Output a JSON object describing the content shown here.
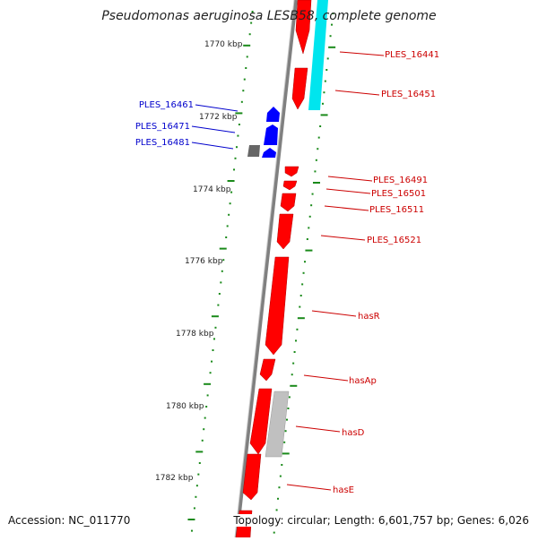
{
  "title": "Pseudomonas aeruginosa LESB58, complete genome",
  "footer": {
    "accession": "Accession: NC_011770",
    "summary": "Topology: circular; Length: 6,601,757 bp; Genes: 6,026"
  },
  "colors": {
    "forward_gene": "#ff0000",
    "reverse_gene": "#0000ff",
    "other_feature": "#808080",
    "rna_feature": "#00e5ee",
    "ruler": "#1a8a1a",
    "backbone": "#808080",
    "left_label": "#0000cc",
    "right_label": "#cc0000"
  },
  "kbp_labels": [
    "1770 kbp",
    "1772 kbp",
    "1774 kbp",
    "1776 kbp",
    "1778 kbp",
    "1780 kbp",
    "1782 kbp"
  ],
  "left_labels": [
    "PLES_16461",
    "PLES_16471",
    "PLES_16481"
  ],
  "right_labels": [
    "PLES_16441",
    "PLES_16451",
    "PLES_16491",
    "PLES_16501",
    "PLES_16511",
    "PLES_16521",
    "hasR",
    "hasAp",
    "hasD",
    "hasE"
  ]
}
